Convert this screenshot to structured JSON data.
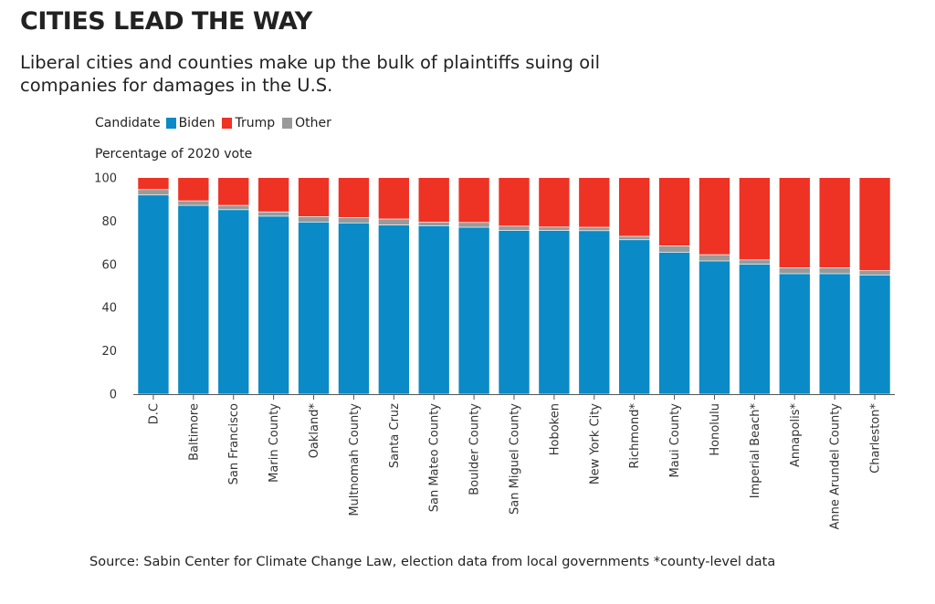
{
  "title": "CITIES LEAD THE WAY",
  "subtitle": "Liberal cities and counties make up the bulk of plaintiffs suing oil companies for damages in the U.S.",
  "legend": {
    "label": "Candidate",
    "items": [
      {
        "name": "Biden",
        "color": "#0a8ac6"
      },
      {
        "name": "Trump",
        "color": "#ee3224"
      },
      {
        "name": "Other",
        "color": "#9a9a9a"
      }
    ]
  },
  "source": "Source: Sabin Center for Climate Change Law, election data from local governments  *county-level data",
  "chart_data": {
    "type": "bar",
    "stacked": true,
    "ylabel": "Percentage of 2020 vote",
    "ylim": [
      0,
      100
    ],
    "yticks": [
      0,
      20,
      40,
      60,
      80,
      100
    ],
    "categories": [
      "D.C",
      "Baltimore",
      "San Francisco",
      "Marin County",
      "Oakland*",
      "Multnomah County",
      "Santa Cruz",
      "San Mateo County",
      "Boulder County",
      "San Miguel County",
      "Hoboken",
      "New York City",
      "Richmond*",
      "Maui County",
      "Honolulu",
      "Imperial Beach*",
      "Annapolis*",
      "Anne Arundel County",
      "Charleston*"
    ],
    "series": [
      {
        "name": "Biden",
        "color": "#0a8ac6",
        "values": [
          92.1,
          87.3,
          85.3,
          82.3,
          79.6,
          79.2,
          78.2,
          77.9,
          77.2,
          75.7,
          75.7,
          75.6,
          71.4,
          65.6,
          61.6,
          60.1,
          55.7,
          55.7,
          55.1
        ]
      },
      {
        "name": "Other",
        "color": "#9a9a9a",
        "values": [
          2.5,
          2.1,
          2.0,
          2.0,
          2.5,
          2.5,
          2.8,
          1.6,
          2.2,
          2.0,
          1.6,
          1.6,
          1.6,
          3.0,
          2.9,
          2.0,
          2.8,
          2.8,
          2.0
        ]
      },
      {
        "name": "Trump",
        "color": "#ee3224",
        "values": [
          5.4,
          10.6,
          12.7,
          15.7,
          17.9,
          18.3,
          19.0,
          20.5,
          20.6,
          22.3,
          22.7,
          22.8,
          27.0,
          31.4,
          35.5,
          37.9,
          41.5,
          41.5,
          42.9
        ]
      }
    ],
    "grid": false
  }
}
